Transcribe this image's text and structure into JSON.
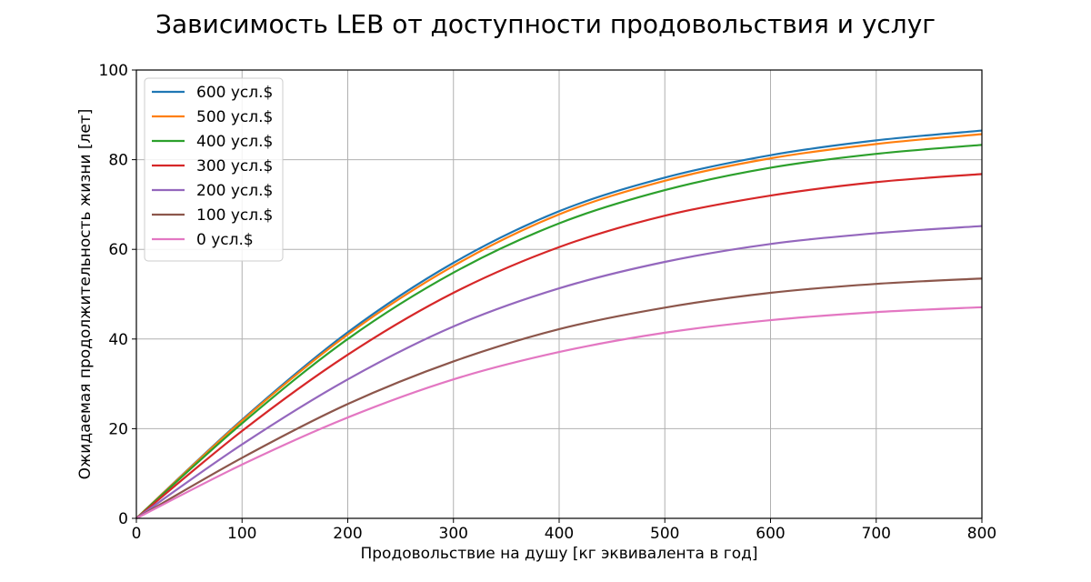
{
  "chart_data": {
    "type": "line",
    "title": "Зависимость LEB от доступности продовольствия и услуг",
    "xlabel": "Продовольствие на душу [кг эквивалента в год]",
    "ylabel": "Ожидаемая продолжительность жизни [лет]",
    "xlim": [
      0,
      800
    ],
    "ylim": [
      0,
      100
    ],
    "xticks": [
      0,
      100,
      200,
      300,
      400,
      500,
      600,
      700,
      800
    ],
    "yticks": [
      0,
      20,
      40,
      60,
      80,
      100
    ],
    "grid": true,
    "legend_position": "top-left",
    "x": [
      0,
      100,
      200,
      300,
      400,
      500,
      600,
      700,
      800
    ],
    "series": [
      {
        "name": "600 усл.$",
        "color": "#1f77b4",
        "values": [
          0,
          22,
          41.5,
          57,
          68.5,
          76,
          81,
          84.3,
          86.5
        ]
      },
      {
        "name": "500 усл.$",
        "color": "#ff7f0e",
        "values": [
          0,
          21.8,
          41,
          56.3,
          67.8,
          75.3,
          80.3,
          83.5,
          85.7
        ]
      },
      {
        "name": "400 усл.$",
        "color": "#2ca02c",
        "values": [
          0,
          21.2,
          40,
          54.8,
          65.8,
          73.2,
          78.2,
          81.3,
          83.3
        ]
      },
      {
        "name": "300 усл.$",
        "color": "#d62728",
        "values": [
          0,
          19.5,
          36.5,
          50.3,
          60.5,
          67.5,
          72,
          75,
          76.8
        ]
      },
      {
        "name": "200 усл.$",
        "color": "#9467bd",
        "values": [
          0,
          16.5,
          31,
          42.8,
          51.3,
          57.2,
          61.2,
          63.6,
          65.2
        ]
      },
      {
        "name": "100 усл.$",
        "color": "#8c564b",
        "values": [
          0,
          13.5,
          25.5,
          35,
          42.2,
          47,
          50.3,
          52.3,
          53.5
        ]
      },
      {
        "name": "0 усл.$",
        "color": "#e377c2",
        "values": [
          0,
          12,
          22.5,
          31,
          37.1,
          41.4,
          44.2,
          46,
          47.1
        ]
      }
    ]
  }
}
